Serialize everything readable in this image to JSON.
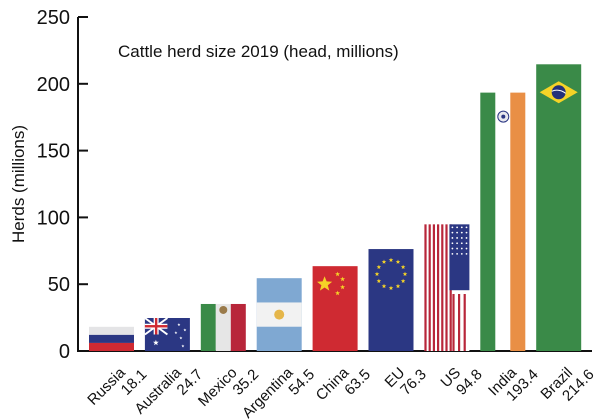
{
  "chart_data": {
    "type": "bar",
    "title": "Cattle herd size 2019 (head, millions)",
    "xlabel": "",
    "ylabel": "Herds (millions)",
    "ylim": [
      0,
      250
    ],
    "yticks": [
      "0",
      "50",
      "100",
      "150",
      "200",
      "250"
    ],
    "grid": false,
    "categories": [
      "Russia",
      "Australia",
      "Mexico",
      "Argentina",
      "China",
      "EU",
      "US",
      "India",
      "Brazil"
    ],
    "values": [
      18.1,
      24.7,
      35.2,
      54.5,
      63.5,
      76.3,
      94.8,
      193.4,
      214.6
    ],
    "value_labels": [
      "18.1",
      "24.7",
      "35.2",
      "54.5",
      "63.5",
      "76.3",
      "94.8",
      "193.4",
      "214.6"
    ],
    "bar_style": "national flags",
    "colors": {
      "red": "#cf2a32",
      "blue": "#2b3783",
      "white": "#f2f2f2",
      "green": "#3a8a48",
      "light_blue": "#7fa8d2",
      "yellow": "#f5d327",
      "orange": "#e98f45"
    }
  }
}
